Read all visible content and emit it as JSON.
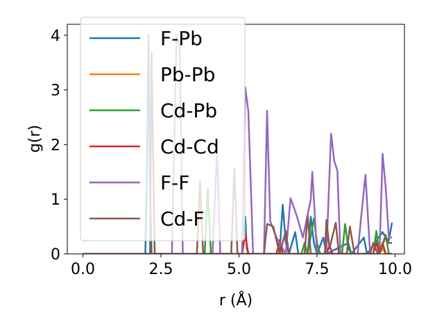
{
  "chart_data": {
    "type": "line",
    "title": "",
    "xlabel": "r (Å)",
    "ylabel": "g(r)",
    "xlim": [
      -0.5,
      10.3
    ],
    "ylim": [
      0,
      4.2
    ],
    "xticks": [
      0.0,
      2.5,
      5.0,
      7.5,
      10.0
    ],
    "xtick_labels": [
      "0.0",
      "2.5",
      "5.0",
      "7.5",
      "10.0"
    ],
    "yticks": [
      0,
      1,
      2,
      3,
      4
    ],
    "ytick_labels": [
      "0",
      "1",
      "2",
      "3",
      "4"
    ],
    "legend_position": "top-left",
    "grid": false,
    "series": [
      {
        "name": "F-Pb",
        "color": "#1f77b4",
        "points": [
          [
            0,
            0
          ],
          [
            2.0,
            0
          ],
          [
            2.05,
            1.5
          ],
          [
            2.1,
            4.0
          ],
          [
            2.15,
            1.2
          ],
          [
            2.2,
            0
          ],
          [
            5.1,
            0
          ],
          [
            5.2,
            0.68
          ],
          [
            5.25,
            0.1
          ],
          [
            5.3,
            0
          ],
          [
            6.3,
            0
          ],
          [
            6.4,
            0.9
          ],
          [
            6.5,
            0.2
          ],
          [
            6.6,
            0
          ],
          [
            6.8,
            0.4
          ],
          [
            6.9,
            0
          ],
          [
            7.2,
            0
          ],
          [
            7.3,
            0.68
          ],
          [
            7.4,
            0.2
          ],
          [
            7.5,
            0
          ],
          [
            7.7,
            0.3
          ],
          [
            7.8,
            0
          ],
          [
            8.5,
            0.2
          ],
          [
            8.6,
            0
          ],
          [
            9.0,
            0.3
          ],
          [
            9.1,
            0
          ],
          [
            9.6,
            0.4
          ],
          [
            9.7,
            0.3
          ],
          [
            9.8,
            0.25
          ],
          [
            9.9,
            0.57
          ]
        ]
      },
      {
        "name": "Pb-Pb",
        "color": "#ff7f0e",
        "points": [
          [
            0,
            0
          ],
          [
            9.5,
            0
          ],
          [
            9.6,
            0.1
          ],
          [
            9.7,
            0
          ],
          [
            9.9,
            0
          ]
        ]
      },
      {
        "name": "Cd-Pb",
        "color": "#2ca02c",
        "points": [
          [
            0,
            0
          ],
          [
            3.9,
            0
          ],
          [
            4.0,
            1.2
          ],
          [
            4.1,
            0
          ],
          [
            7.0,
            0
          ],
          [
            7.1,
            0.2
          ],
          [
            7.2,
            0
          ],
          [
            7.4,
            0.65
          ],
          [
            7.5,
            0.2
          ],
          [
            7.6,
            0
          ],
          [
            8.3,
            0
          ],
          [
            8.4,
            0.55
          ],
          [
            8.5,
            0.1
          ],
          [
            8.6,
            0
          ],
          [
            9.3,
            0
          ],
          [
            9.4,
            0.42
          ],
          [
            9.5,
            0
          ],
          [
            9.7,
            0.35
          ],
          [
            9.8,
            0
          ],
          [
            9.9,
            0
          ]
        ]
      },
      {
        "name": "Cd-Cd",
        "color": "#d62728",
        "points": [
          [
            0,
            0
          ],
          [
            5.1,
            0
          ],
          [
            5.2,
            0.35
          ],
          [
            5.3,
            0
          ],
          [
            6.2,
            0
          ],
          [
            6.3,
            0.25
          ],
          [
            6.4,
            0
          ],
          [
            7.8,
            0
          ],
          [
            7.9,
            0.15
          ],
          [
            8.0,
            0
          ],
          [
            9.3,
            0
          ],
          [
            9.4,
            0.2
          ],
          [
            9.5,
            0
          ],
          [
            9.6,
            0.2
          ],
          [
            9.7,
            0
          ],
          [
            9.9,
            0
          ]
        ]
      },
      {
        "name": "F-F",
        "color": "#9467bd",
        "points": [
          [
            0,
            0
          ],
          [
            2.85,
            0
          ],
          [
            3.0,
            4.0
          ],
          [
            3.1,
            3.8
          ],
          [
            3.2,
            0
          ],
          [
            4.15,
            0
          ],
          [
            4.3,
            1.9
          ],
          [
            4.4,
            0
          ],
          [
            5.1,
            0
          ],
          [
            5.2,
            3.05
          ],
          [
            5.3,
            2.6
          ],
          [
            5.45,
            0
          ],
          [
            5.8,
            0
          ],
          [
            5.9,
            2.62
          ],
          [
            6.0,
            0.6
          ],
          [
            6.2,
            0.3
          ],
          [
            6.5,
            0
          ],
          [
            6.65,
            1.02
          ],
          [
            6.85,
            0.7
          ],
          [
            7.05,
            0.3
          ],
          [
            7.3,
            1.0
          ],
          [
            7.35,
            1.5
          ],
          [
            7.5,
            0
          ],
          [
            7.8,
            0
          ],
          [
            7.95,
            2.2
          ],
          [
            8.05,
            1.7
          ],
          [
            8.15,
            1.52
          ],
          [
            8.25,
            0
          ],
          [
            8.8,
            0
          ],
          [
            8.9,
            0.6
          ],
          [
            9.05,
            1.45
          ],
          [
            9.2,
            0
          ],
          [
            9.5,
            0
          ],
          [
            9.6,
            1.83
          ],
          [
            9.7,
            1.2
          ],
          [
            9.8,
            0.3
          ],
          [
            9.9,
            0.3
          ]
        ]
      },
      {
        "name": "Cd-F",
        "color": "#8c564b",
        "points": [
          [
            0,
            0
          ],
          [
            2.15,
            0
          ],
          [
            2.2,
            3.68
          ],
          [
            2.3,
            0
          ],
          [
            3.65,
            0
          ],
          [
            3.75,
            1.33
          ],
          [
            3.85,
            0
          ],
          [
            4.75,
            0
          ],
          [
            4.85,
            1.57
          ],
          [
            4.95,
            0
          ],
          [
            5.8,
            0
          ],
          [
            5.9,
            0.55
          ],
          [
            6.1,
            0.5
          ],
          [
            6.3,
            0
          ],
          [
            6.5,
            0.42
          ],
          [
            6.6,
            0
          ],
          [
            7.1,
            0
          ],
          [
            7.2,
            0.7
          ],
          [
            7.3,
            0
          ],
          [
            7.75,
            0
          ],
          [
            7.8,
            0.62
          ],
          [
            7.9,
            0.1
          ],
          [
            8.1,
            0.57
          ],
          [
            8.2,
            0
          ],
          [
            8.45,
            0
          ],
          [
            8.55,
            0.5
          ],
          [
            8.7,
            0
          ],
          [
            9.2,
            0
          ],
          [
            9.3,
            0.2
          ],
          [
            9.45,
            0
          ],
          [
            9.7,
            0.3
          ],
          [
            9.8,
            0.2
          ],
          [
            9.9,
            0.2
          ]
        ]
      }
    ]
  }
}
